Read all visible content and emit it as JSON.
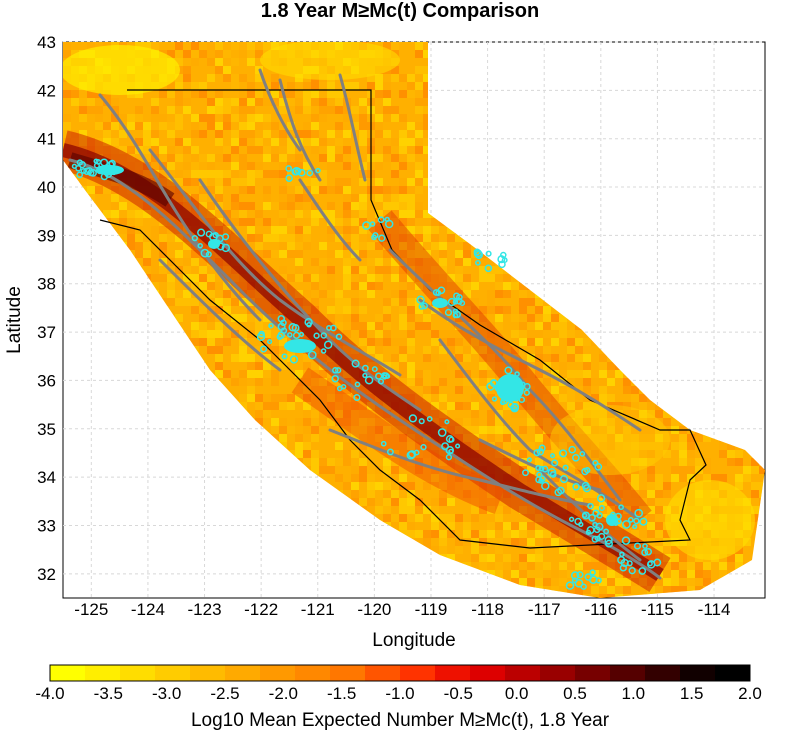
{
  "title": "1.8 Year M≥Mc(t) Comparison",
  "x_axis": {
    "label": "Longitude",
    "range": [
      -125.5,
      -113.1
    ],
    "ticks": [
      "-125",
      "-124",
      "-123",
      "-122",
      "-121",
      "-120",
      "-119",
      "-118",
      "-117",
      "-116",
      "-115",
      "-114"
    ]
  },
  "y_axis": {
    "label": "Latitude",
    "range": [
      31.5,
      43.0
    ],
    "ticks": [
      "32",
      "33",
      "34",
      "35",
      "36",
      "37",
      "38",
      "39",
      "40",
      "41",
      "42",
      "43"
    ]
  },
  "grid": true,
  "colorbar": {
    "label": "Log10 Mean Expected Number M≥Mc(t), 1.8 Year",
    "min": -4.0,
    "max": 2.0,
    "ticks": [
      "-4.0",
      "-3.5",
      "-3.0",
      "-2.5",
      "-2.0",
      "-1.5",
      "-1.0",
      "-0.5",
      "0.0",
      "0.5",
      "1.0",
      "1.5",
      "2.0"
    ],
    "colors": [
      "#ffff00",
      "#ffee00",
      "#ffdd00",
      "#ffcc00",
      "#ffbb00",
      "#ffaa00",
      "#ff9900",
      "#ff8800",
      "#ff7700",
      "#ff5500",
      "#ff3300",
      "#ee1100",
      "#dd0000",
      "#bb0000",
      "#990000",
      "#770000",
      "#550000",
      "#330000",
      "#110000",
      "#000000"
    ]
  },
  "colors": {
    "faults": "#808080",
    "earthquakes": "#33e6e6",
    "border": "#000000"
  }
}
